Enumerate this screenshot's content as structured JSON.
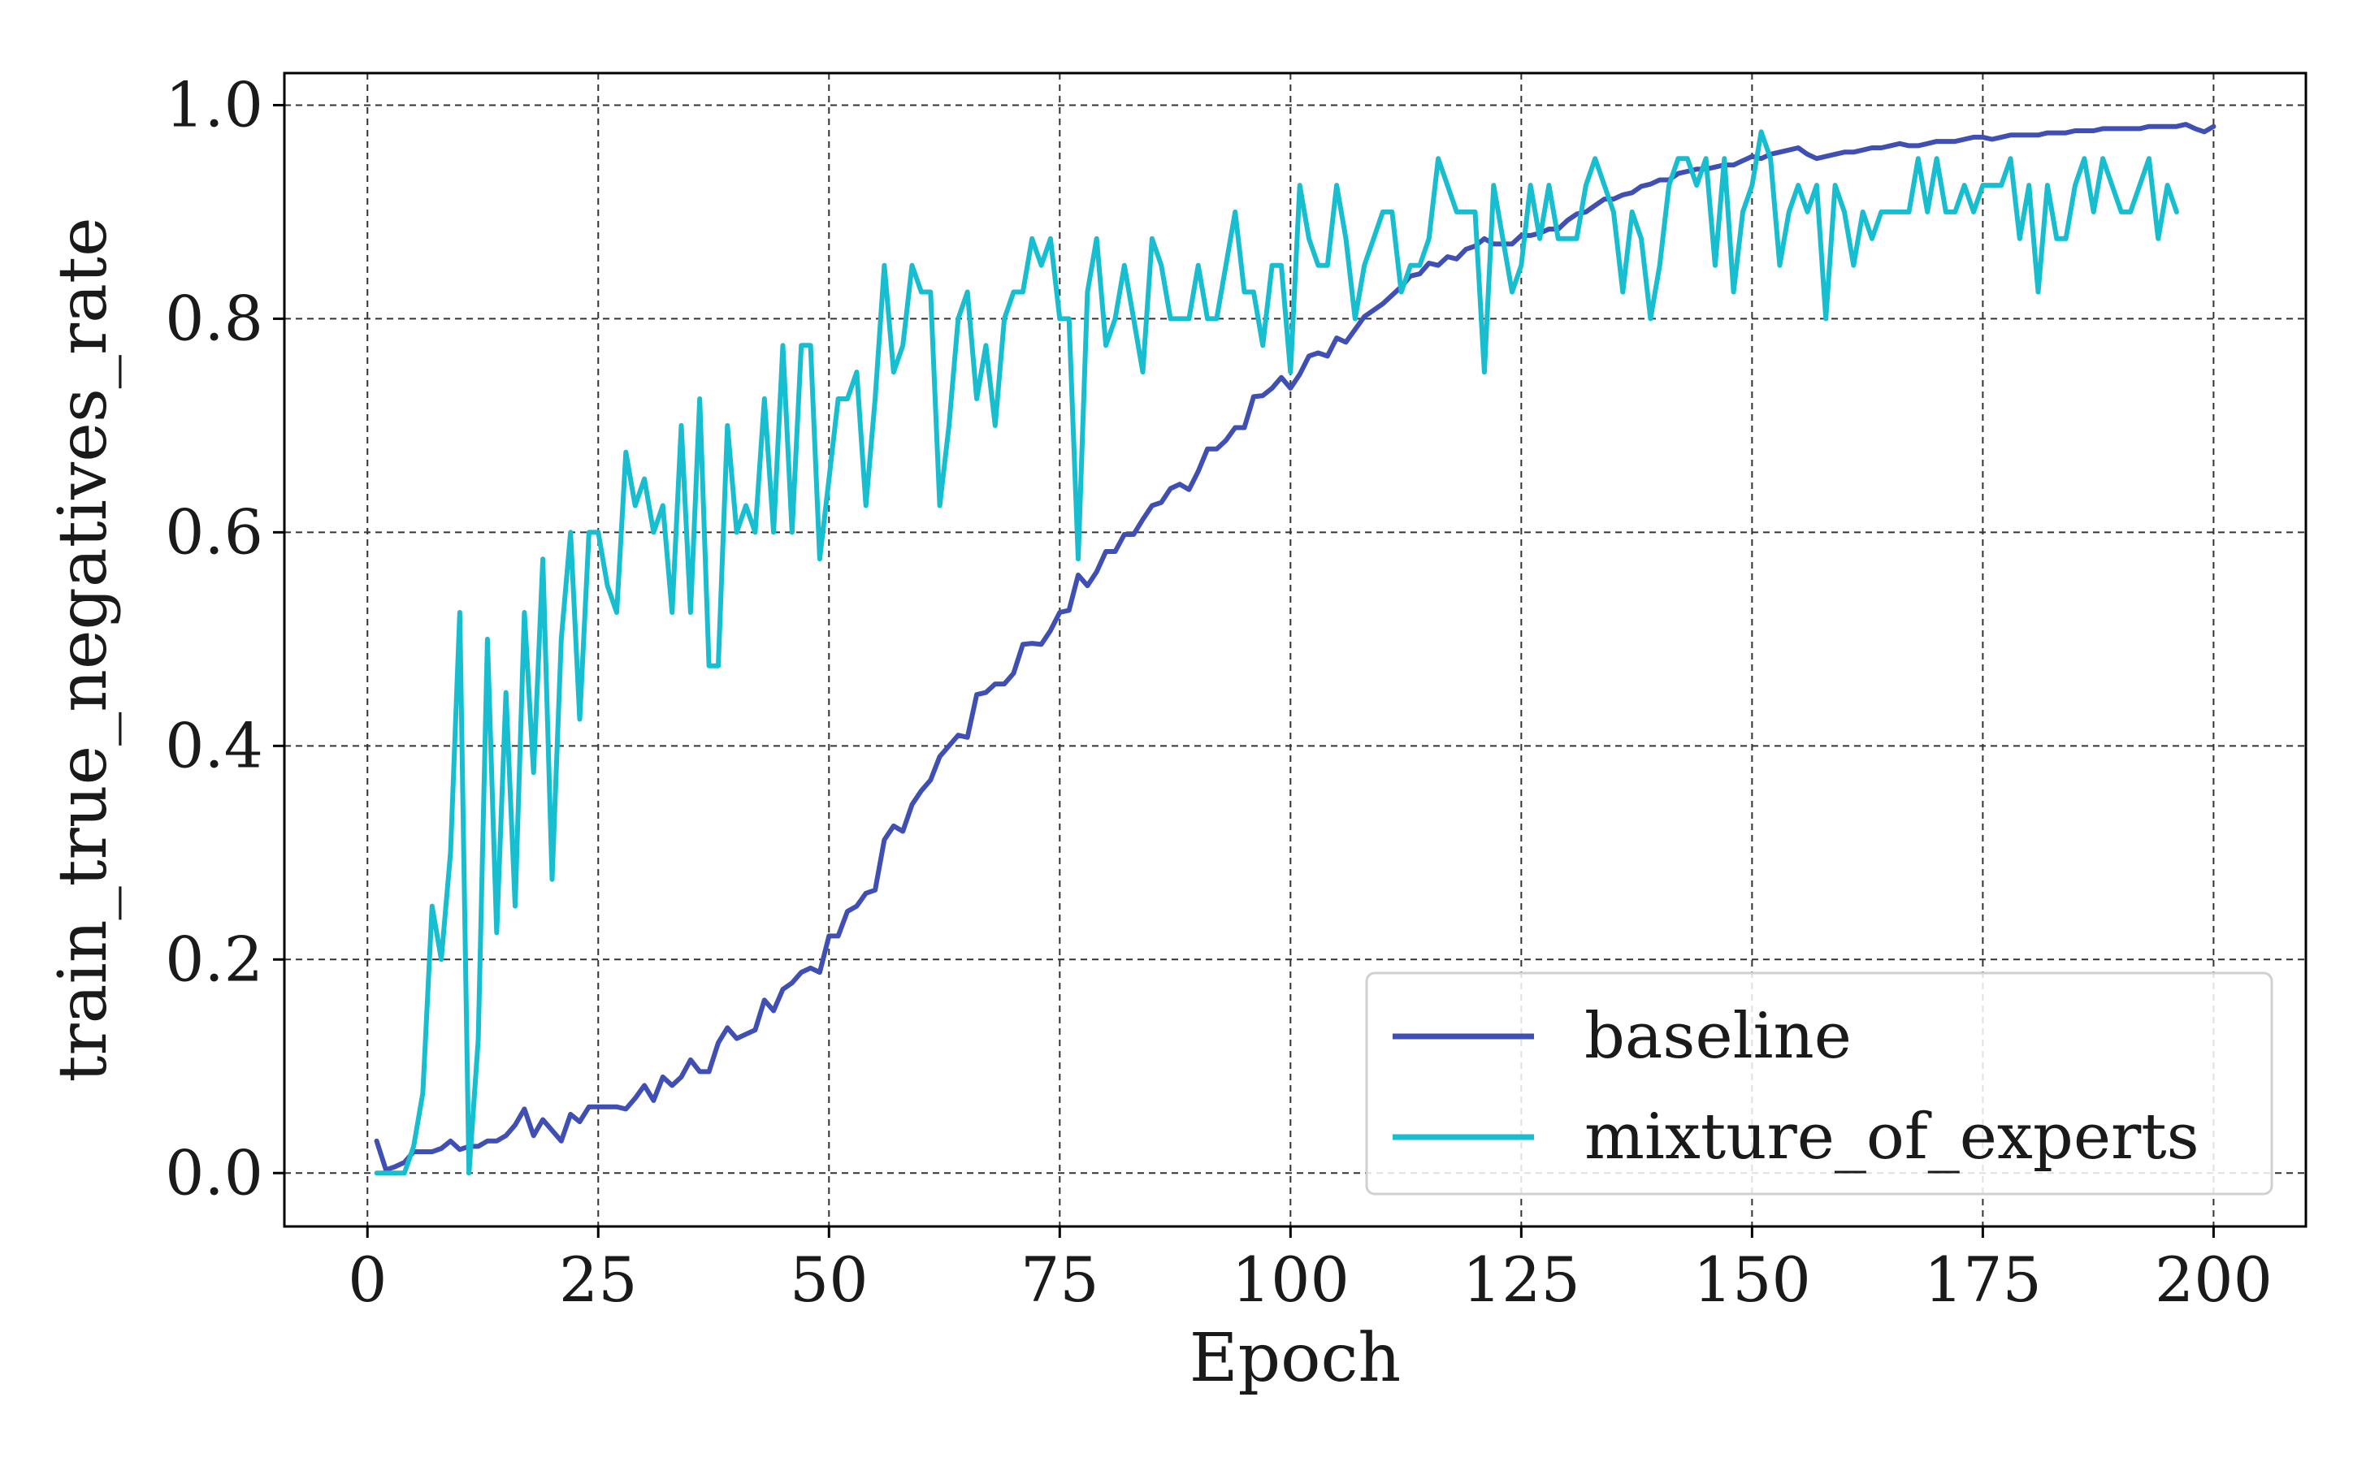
{
  "chart_data": {
    "type": "line",
    "title": "",
    "xlabel": "Epoch",
    "ylabel": "train_true_negatives_rate",
    "xlim": [
      -9,
      210
    ],
    "ylim": [
      -0.05,
      1.03
    ],
    "x_ticks": [
      0,
      25,
      50,
      75,
      100,
      125,
      150,
      175,
      200
    ],
    "y_ticks": [
      0.0,
      0.2,
      0.4,
      0.6,
      0.8,
      1.0
    ],
    "x_tick_labels": [
      "0",
      "25",
      "50",
      "75",
      "100",
      "125",
      "150",
      "175",
      "200"
    ],
    "y_tick_labels": [
      "0.0",
      "0.2",
      "0.4",
      "0.6",
      "0.8",
      "1.0"
    ],
    "grid": true,
    "legend_position": "bottom-right",
    "x_start": 1,
    "series": [
      {
        "name": "baseline",
        "color": "#3f4fb4",
        "values": [
          0.03,
          0.003,
          0.006,
          0.01,
          0.02,
          0.02,
          0.02,
          0.023,
          0.03,
          0.022,
          0.025,
          0.025,
          0.03,
          0.03,
          0.035,
          0.045,
          0.06,
          0.035,
          0.05,
          0.04,
          0.03,
          0.055,
          0.048,
          0.062,
          0.062,
          0.062,
          0.062,
          0.06,
          0.07,
          0.082,
          0.068,
          0.09,
          0.082,
          0.09,
          0.106,
          0.095,
          0.095,
          0.122,
          0.136,
          0.126,
          0.13,
          0.134,
          0.162,
          0.152,
          0.172,
          0.178,
          0.188,
          0.192,
          0.188,
          0.222,
          0.222,
          0.245,
          0.25,
          0.262,
          0.265,
          0.312,
          0.325,
          0.32,
          0.345,
          0.358,
          0.368,
          0.39,
          0.4,
          0.41,
          0.408,
          0.448,
          0.45,
          0.458,
          0.458,
          0.468,
          0.495,
          0.496,
          0.495,
          0.508,
          0.525,
          0.527,
          0.56,
          0.55,
          0.563,
          0.582,
          0.582,
          0.598,
          0.598,
          0.612,
          0.625,
          0.628,
          0.641,
          0.645,
          0.64,
          0.657,
          0.678,
          0.678,
          0.686,
          0.698,
          0.698,
          0.727,
          0.728,
          0.735,
          0.745,
          0.735,
          0.748,
          0.765,
          0.768,
          0.765,
          0.782,
          0.778,
          0.79,
          0.802,
          0.808,
          0.814,
          0.822,
          0.83,
          0.84,
          0.842,
          0.852,
          0.85,
          0.858,
          0.856,
          0.865,
          0.868,
          0.875,
          0.87,
          0.87,
          0.87,
          0.878,
          0.878,
          0.88,
          0.884,
          0.884,
          0.892,
          0.898,
          0.9,
          0.906,
          0.912,
          0.912,
          0.916,
          0.918,
          0.924,
          0.926,
          0.93,
          0.93,
          0.936,
          0.938,
          0.94,
          0.94,
          0.942,
          0.944,
          0.944,
          0.948,
          0.952,
          0.95,
          0.954,
          0.956,
          0.958,
          0.96,
          0.954,
          0.95,
          0.952,
          0.954,
          0.956,
          0.956,
          0.958,
          0.96,
          0.96,
          0.962,
          0.964,
          0.962,
          0.962,
          0.964,
          0.966,
          0.966,
          0.966,
          0.968,
          0.97,
          0.97,
          0.968,
          0.97,
          0.972,
          0.972,
          0.972,
          0.972,
          0.974,
          0.974,
          0.974,
          0.976,
          0.976,
          0.976,
          0.978,
          0.978,
          0.978,
          0.978,
          0.978,
          0.98,
          0.98,
          0.98,
          0.98,
          0.982,
          0.978,
          0.975,
          0.98
        ]
      },
      {
        "name": "mixture_of_experts",
        "color": "#17becf",
        "values": [
          0.0,
          0.0,
          0.0,
          0.0,
          0.025,
          0.075,
          0.25,
          0.2,
          0.3,
          0.525,
          0.0,
          0.125,
          0.5,
          0.225,
          0.45,
          0.25,
          0.525,
          0.375,
          0.575,
          0.275,
          0.5,
          0.6,
          0.425,
          0.6,
          0.6,
          0.55,
          0.525,
          0.675,
          0.625,
          0.65,
          0.6,
          0.625,
          0.525,
          0.7,
          0.525,
          0.725,
          0.475,
          0.475,
          0.7,
          0.6,
          0.625,
          0.6,
          0.725,
          0.6,
          0.775,
          0.6,
          0.775,
          0.775,
          0.575,
          0.65,
          0.725,
          0.725,
          0.75,
          0.625,
          0.725,
          0.85,
          0.75,
          0.775,
          0.85,
          0.825,
          0.825,
          0.625,
          0.7,
          0.8,
          0.825,
          0.725,
          0.775,
          0.7,
          0.8,
          0.825,
          0.825,
          0.875,
          0.85,
          0.875,
          0.8,
          0.8,
          0.575,
          0.825,
          0.875,
          0.775,
          0.8,
          0.85,
          0.8,
          0.75,
          0.875,
          0.85,
          0.8,
          0.8,
          0.8,
          0.85,
          0.8,
          0.8,
          0.85,
          0.9,
          0.825,
          0.825,
          0.775,
          0.85,
          0.85,
          0.75,
          0.925,
          0.875,
          0.85,
          0.85,
          0.925,
          0.875,
          0.8,
          0.85,
          0.875,
          0.9,
          0.9,
          0.825,
          0.85,
          0.85,
          0.875,
          0.95,
          0.925,
          0.9,
          0.9,
          0.9,
          0.75,
          0.925,
          0.875,
          0.825,
          0.85,
          0.925,
          0.875,
          0.925,
          0.875,
          0.875,
          0.875,
          0.925,
          0.95,
          0.925,
          0.9,
          0.825,
          0.9,
          0.875,
          0.8,
          0.85,
          0.925,
          0.95,
          0.95,
          0.925,
          0.95,
          0.85,
          0.95,
          0.825,
          0.9,
          0.925,
          0.975,
          0.95,
          0.85,
          0.9,
          0.925,
          0.9,
          0.925,
          0.8,
          0.925,
          0.9,
          0.85,
          0.9,
          0.875,
          0.9,
          0.9,
          0.9,
          0.9,
          0.95,
          0.9,
          0.95,
          0.9,
          0.9,
          0.925,
          0.9,
          0.925,
          0.925,
          0.925,
          0.95,
          0.875,
          0.925,
          0.825,
          0.925,
          0.875,
          0.875,
          0.925,
          0.95,
          0.9,
          0.95,
          0.925,
          0.9,
          0.9,
          0.925,
          0.95,
          0.875,
          0.925,
          0.9
        ]
      }
    ]
  }
}
